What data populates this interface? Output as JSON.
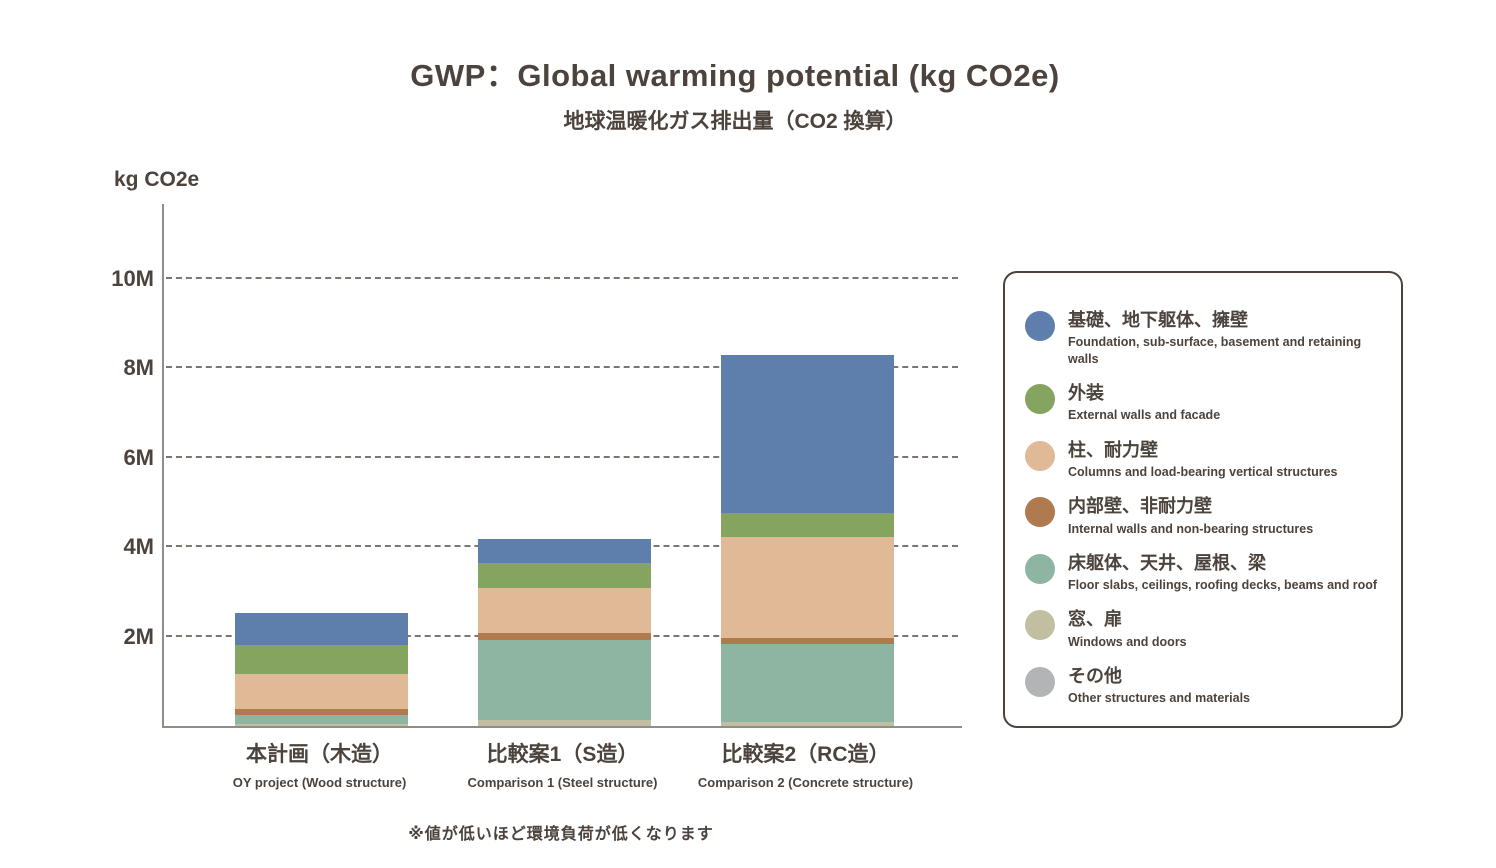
{
  "title": "GWP：Global warming potential (kg CO2e)",
  "subtitle": "地球温暖化ガス排出量（CO2 換算）",
  "y_axis_title": "kg CO2e",
  "footnote": "※値が低いほど環境負荷が低くなります",
  "colors": {
    "text": "#4c433c",
    "axis": "#8f8c89",
    "gridline": "#7b7672",
    "background": "#ffffff"
  },
  "chart_data": {
    "type": "bar",
    "subtype": "stacked",
    "title": "GWP：Global warming potential (kg CO2e)",
    "subtitle": "地球温暖化ガス排出量（CO2 換算）",
    "ylabel": "kg CO2e",
    "unit": "kg CO2e",
    "value_unit": "millions of kg CO2e",
    "ylim": [
      0,
      11.6
    ],
    "grid": "horizontal dashed",
    "legend_position": "right",
    "stack_order": "series listed top-to-bottom within each bar",
    "yticks": [
      {
        "label": "10M",
        "value": 10
      },
      {
        "label": "8M",
        "value": 8
      },
      {
        "label": "6M",
        "value": 6
      },
      {
        "label": "4M",
        "value": 4
      },
      {
        "label": "2M",
        "value": 2
      }
    ],
    "categories": [
      {
        "jp": "本計画（木造）",
        "en": "OY project (Wood structure)"
      },
      {
        "jp": "比較案1（S造）",
        "en": "Comparison 1 (Steel structure)"
      },
      {
        "jp": "比較案2（RC造）",
        "en": "Comparison 2 (Concrete structure)"
      }
    ],
    "totals": [
      2.52,
      4.18,
      8.3
    ],
    "series": [
      {
        "name_jp": "基礎、地下躯体、擁壁",
        "name_en": "Foundation, sub-surface, basement and retaining walls",
        "color": "#5E7EAC",
        "values": [
          0.7,
          0.54,
          3.53
        ]
      },
      {
        "name_jp": "外装",
        "name_en": "External walls and facade",
        "color": "#84A45F",
        "values": [
          0.65,
          0.55,
          0.55
        ]
      },
      {
        "name_jp": "柱、耐力壁",
        "name_en": "Columns and load-bearing vertical structures",
        "color": "#E0B996",
        "values": [
          0.8,
          1.02,
          2.26
        ]
      },
      {
        "name_jp": "内部壁、非耐力壁",
        "name_en": "Internal walls and non-bearing structures",
        "color": "#AE7A4E",
        "values": [
          0.13,
          0.14,
          0.13
        ]
      },
      {
        "name_jp": "床躯体、天井、屋根、梁",
        "name_en": "Floor slabs, ceilings, roofing decks, beams and roof",
        "color": "#8DB5A2",
        "values": [
          0.19,
          1.79,
          1.73
        ]
      },
      {
        "name_jp": "窓、扉",
        "name_en": "Windows and doors",
        "color": "#C1BEA1",
        "values": [
          0.05,
          0.14,
          0.1
        ]
      },
      {
        "name_jp": "その他",
        "name_en": "Other structures and materials",
        "color": "#B3B4B6",
        "values": [
          0,
          0,
          0
        ]
      }
    ]
  }
}
